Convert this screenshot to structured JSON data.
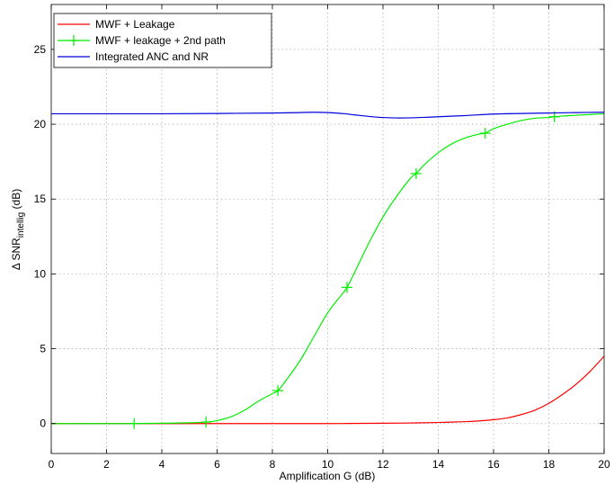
{
  "chart_data": {
    "type": "line",
    "xlabel": "Amplification G (dB)",
    "ylabel_main": "Δ SNR",
    "ylabel_sub": "intellig",
    "ylabel_unit": " (dB)",
    "xlim": [
      0,
      20
    ],
    "ylim": [
      -2,
      28
    ],
    "xticks": [
      0,
      2,
      4,
      6,
      8,
      10,
      12,
      14,
      16,
      18,
      20
    ],
    "yticks": [
      0,
      5,
      10,
      15,
      20,
      25
    ],
    "grid": true,
    "legend_position": "top-left",
    "series": [
      {
        "name": "MWF + Leakage",
        "color": "#ff0000",
        "marker": "none",
        "x": [
          0,
          2,
          4,
          6,
          8,
          10,
          12,
          13,
          14,
          15,
          15.5,
          16,
          16.5,
          17,
          17.5,
          18,
          18.5,
          19,
          19.5,
          20
        ],
        "y": [
          0,
          0,
          0,
          0,
          0,
          0,
          0.02,
          0.04,
          0.07,
          0.13,
          0.18,
          0.26,
          0.38,
          0.6,
          0.9,
          1.35,
          1.95,
          2.65,
          3.5,
          4.5
        ]
      },
      {
        "name": "MWF + leakage + 2nd path",
        "color": "#00ee00",
        "marker": "+",
        "x": [
          0,
          2,
          3,
          4,
          5,
          5.6,
          6,
          6.5,
          7,
          7.5,
          8,
          8.2,
          8.5,
          9,
          9.5,
          10,
          10.5,
          10.7,
          11,
          11.5,
          12,
          12.5,
          13,
          13.2,
          13.5,
          14,
          14.5,
          15,
          15.5,
          15.7,
          16,
          16.5,
          17,
          17.5,
          18,
          18.2,
          18.5,
          19,
          19.5,
          20
        ],
        "y": [
          0,
          0,
          0,
          0.02,
          0.05,
          0.1,
          0.2,
          0.45,
          0.9,
          1.5,
          2.0,
          2.2,
          2.9,
          4.2,
          5.8,
          7.4,
          8.6,
          9.1,
          10.2,
          12.1,
          13.8,
          15.2,
          16.4,
          16.7,
          17.3,
          18.1,
          18.7,
          19.1,
          19.35,
          19.4,
          19.7,
          20.0,
          20.25,
          20.4,
          20.45,
          20.5,
          20.55,
          20.6,
          20.65,
          20.7
        ],
        "marker_x": [
          3,
          5.6,
          8.2,
          10.7,
          13.2,
          15.7,
          18.2
        ],
        "marker_y": [
          0,
          0.1,
          2.2,
          9.1,
          16.7,
          19.4,
          20.5
        ]
      },
      {
        "name": "Integrated ANC and NR",
        "color": "#0000dd",
        "marker": "none",
        "x": [
          0,
          2,
          4,
          6,
          8,
          9,
          9.5,
          10,
          10.5,
          11,
          11.5,
          12,
          12.5,
          13,
          13.5,
          14,
          15,
          16,
          17,
          18,
          19,
          20
        ],
        "y": [
          20.7,
          20.7,
          20.7,
          20.72,
          20.75,
          20.78,
          20.8,
          20.78,
          20.72,
          20.62,
          20.52,
          20.45,
          20.42,
          20.43,
          20.46,
          20.5,
          20.58,
          20.68,
          20.72,
          20.75,
          20.78,
          20.8
        ]
      }
    ]
  }
}
